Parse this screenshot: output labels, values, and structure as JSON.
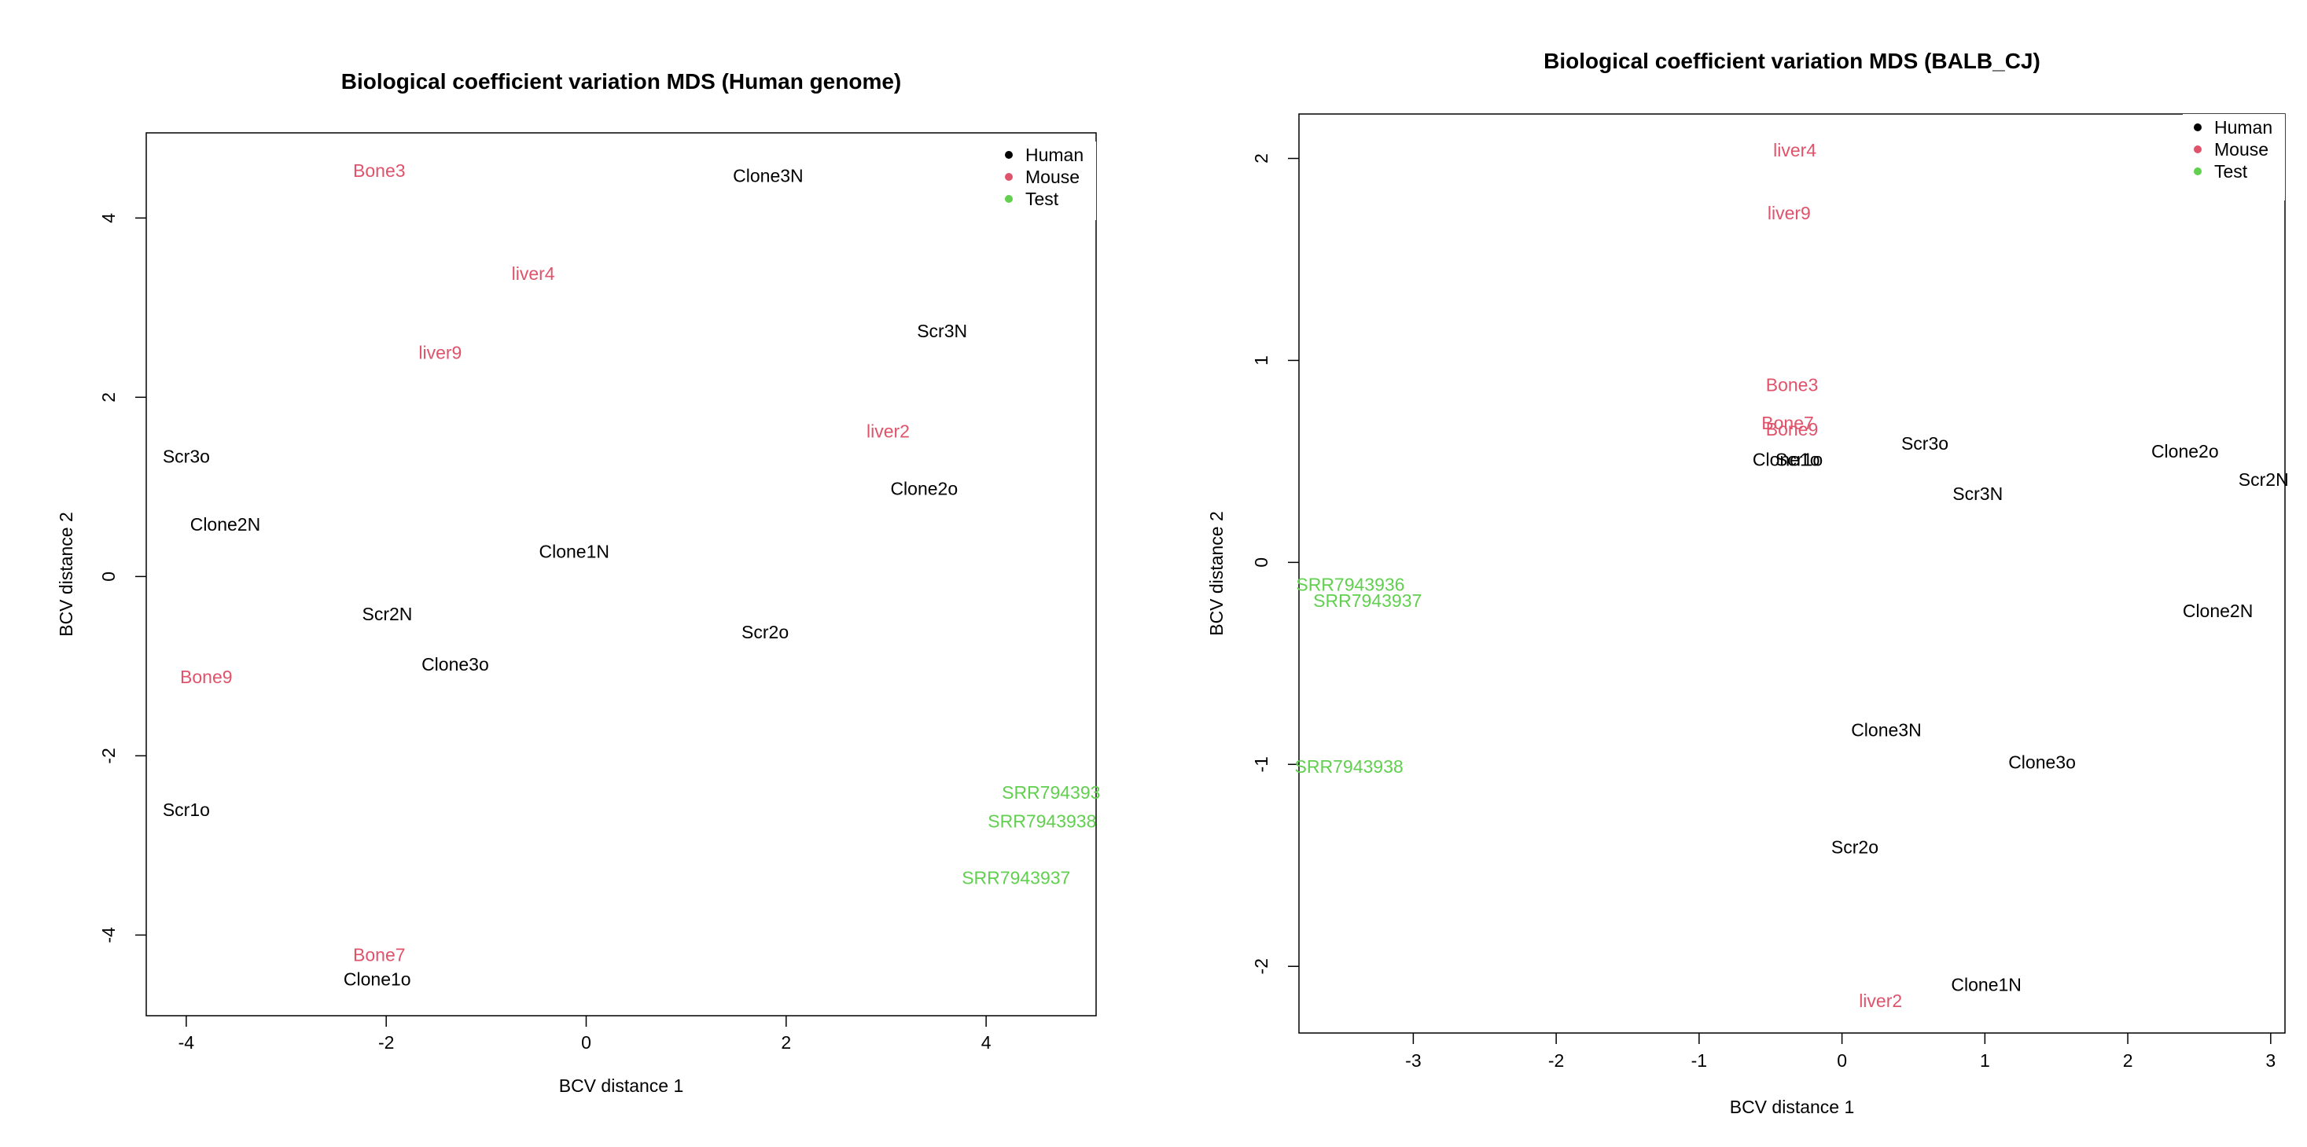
{
  "colors": {
    "Human": "#000000",
    "Mouse": "#DF536B",
    "Test": "#61D04F"
  },
  "chart_data": [
    {
      "type": "scatter",
      "title": "Biological coefficient variation MDS (Human genome)",
      "xlabel": "BCV distance 1",
      "ylabel": "BCV distance 2",
      "xlim": [
        -4.4,
        5.1
      ],
      "ylim": [
        -4.9,
        4.95
      ],
      "xticks": [
        "-4",
        "-2",
        "0",
        "2",
        "4"
      ],
      "yticks": [
        "-4",
        "-2",
        "0",
        "2",
        "4"
      ],
      "grid": false,
      "legend_position": "top-right",
      "legend": [
        "Human",
        "Mouse",
        "Test"
      ],
      "points": [
        {
          "label": "Bone3",
          "group": "Mouse",
          "x": -2.07,
          "y": 4.53
        },
        {
          "label": "Clone3N",
          "group": "Human",
          "x": 1.82,
          "y": 4.47
        },
        {
          "label": "liver4",
          "group": "Mouse",
          "x": -0.53,
          "y": 3.38
        },
        {
          "label": "Scr3N",
          "group": "Human",
          "x": 3.56,
          "y": 2.74
        },
        {
          "label": "liver9",
          "group": "Mouse",
          "x": -1.46,
          "y": 2.5
        },
        {
          "label": "liver2",
          "group": "Mouse",
          "x": 3.02,
          "y": 1.62
        },
        {
          "label": "Scr3o",
          "group": "Human",
          "x": -4.0,
          "y": 1.34
        },
        {
          "label": "Clone2o",
          "group": "Human",
          "x": 3.38,
          "y": 0.98
        },
        {
          "label": "Clone2N",
          "group": "Human",
          "x": -3.61,
          "y": 0.58
        },
        {
          "label": "Clone1N",
          "group": "Human",
          "x": -0.12,
          "y": 0.28
        },
        {
          "label": "Scr2N",
          "group": "Human",
          "x": -1.99,
          "y": -0.42
        },
        {
          "label": "Scr2o",
          "group": "Human",
          "x": 1.79,
          "y": -0.62
        },
        {
          "label": "Clone3o",
          "group": "Human",
          "x": -1.31,
          "y": -0.98
        },
        {
          "label": "Bone9",
          "group": "Mouse",
          "x": -3.8,
          "y": -1.12
        },
        {
          "label": "Scr1o",
          "group": "Human",
          "x": -4.0,
          "y": -2.6
        },
        {
          "label": "SRR794393",
          "group": "Test",
          "x": 4.65,
          "y": -2.41
        },
        {
          "label": "SRR7943938",
          "group": "Test",
          "x": 4.56,
          "y": -2.73
        },
        {
          "label": "SRR7943937",
          "group": "Test",
          "x": 4.3,
          "y": -3.36
        },
        {
          "label": "Bone7",
          "group": "Mouse",
          "x": -2.07,
          "y": -4.22
        },
        {
          "label": "Clone1o",
          "group": "Human",
          "x": -2.09,
          "y": -4.49
        }
      ]
    },
    {
      "type": "scatter",
      "title": "Biological coefficient variation MDS (BALB_CJ)",
      "xlabel": "BCV distance 1",
      "ylabel": "BCV distance 2",
      "xlim": [
        -3.8,
        3.1
      ],
      "ylim": [
        -2.33,
        2.22
      ],
      "xticks": [
        "-3",
        "-2",
        "-1",
        "0",
        "1",
        "2",
        "3"
      ],
      "yticks": [
        "-2",
        "-1",
        "0",
        "1",
        "2"
      ],
      "grid": false,
      "legend_position": "top-right",
      "legend": [
        "Human",
        "Mouse",
        "Test"
      ],
      "points": [
        {
          "label": "liver4",
          "group": "Mouse",
          "x": -0.33,
          "y": 2.04
        },
        {
          "label": "liver9",
          "group": "Mouse",
          "x": -0.37,
          "y": 1.73
        },
        {
          "label": "Bone3",
          "group": "Mouse",
          "x": -0.35,
          "y": 0.88
        },
        {
          "label": "Bone7",
          "group": "Mouse",
          "x": -0.38,
          "y": 0.69
        },
        {
          "label": "Bone9",
          "group": "Mouse",
          "x": -0.35,
          "y": 0.66
        },
        {
          "label": "Scr3o",
          "group": "Human",
          "x": 0.58,
          "y": 0.59
        },
        {
          "label": "Clone2o",
          "group": "Human",
          "x": 2.4,
          "y": 0.55
        },
        {
          "label": "Clone1o",
          "group": "Human",
          "x": -0.39,
          "y": 0.51
        },
        {
          "label": "Scr1o",
          "group": "Human",
          "x": -0.3,
          "y": 0.51
        },
        {
          "label": "Scr2N",
          "group": "Human",
          "x": 2.95,
          "y": 0.41
        },
        {
          "label": "Scr3N",
          "group": "Human",
          "x": 0.95,
          "y": 0.34
        },
        {
          "label": "SRR7943936",
          "group": "Test",
          "x": -3.44,
          "y": -0.11
        },
        {
          "label": "SRR7943937",
          "group": "Test",
          "x": -3.32,
          "y": -0.19
        },
        {
          "label": "Clone2N",
          "group": "Human",
          "x": 2.63,
          "y": -0.24
        },
        {
          "label": "Clone3N",
          "group": "Human",
          "x": 0.31,
          "y": -0.83
        },
        {
          "label": "SRR7943938",
          "group": "Test",
          "x": -3.45,
          "y": -1.01
        },
        {
          "label": "Clone3o",
          "group": "Human",
          "x": 1.4,
          "y": -0.99
        },
        {
          "label": "Scr2o",
          "group": "Human",
          "x": 0.09,
          "y": -1.41
        },
        {
          "label": "Clone1N",
          "group": "Human",
          "x": 1.01,
          "y": -2.09
        },
        {
          "label": "liver2",
          "group": "Mouse",
          "x": 0.27,
          "y": -2.17
        }
      ]
    }
  ]
}
